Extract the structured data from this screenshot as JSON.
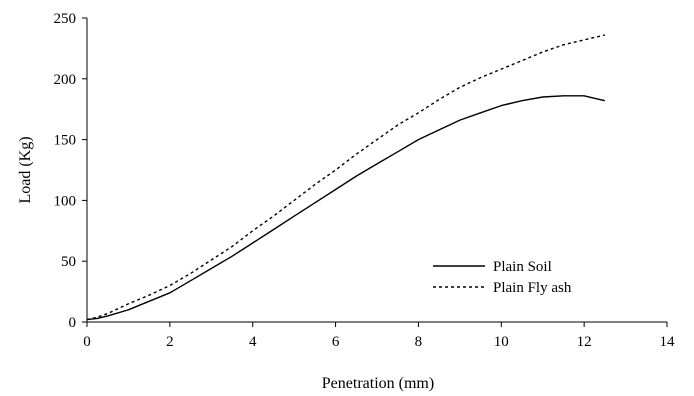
{
  "chart_data": {
    "type": "line",
    "title": "",
    "xlabel": "Penetration (mm)",
    "ylabel": "Load (Kg)",
    "xlim": [
      0,
      14
    ],
    "ylim": [
      0,
      250
    ],
    "x_ticks": [
      0,
      2,
      4,
      6,
      8,
      10,
      12,
      14
    ],
    "y_ticks": [
      0,
      50,
      100,
      150,
      200,
      250
    ],
    "grid": false,
    "legend_position": "right-center",
    "series": [
      {
        "name": "Plain Soil",
        "style": "solid",
        "color": "#000000",
        "x": [
          0,
          0.25,
          0.5,
          1.0,
          1.5,
          2.0,
          2.5,
          3.0,
          3.5,
          4.0,
          4.5,
          5.0,
          5.5,
          6.0,
          6.5,
          7.0,
          7.5,
          8.0,
          8.5,
          9.0,
          9.5,
          10.0,
          10.5,
          11.0,
          11.5,
          12.0,
          12.25,
          12.5
        ],
        "y": [
          2,
          3,
          5,
          10,
          17,
          24,
          34,
          44,
          54,
          65,
          76,
          87,
          98,
          109,
          120,
          130,
          140,
          150,
          158,
          166,
          172,
          178,
          182,
          185,
          186,
          186,
          184,
          182
        ]
      },
      {
        "name": "Plain Fly ash",
        "style": "dotted",
        "color": "#000000",
        "x": [
          0,
          0.25,
          0.5,
          1.0,
          1.5,
          2.0,
          2.5,
          3.0,
          3.5,
          4.0,
          4.5,
          5.0,
          5.5,
          6.0,
          6.5,
          7.0,
          7.5,
          8.0,
          8.5,
          9.0,
          9.5,
          10.0,
          10.5,
          11.0,
          11.5,
          12.0,
          12.5
        ],
        "y": [
          2,
          4,
          7,
          15,
          22,
          30,
          40,
          51,
          62,
          75,
          87,
          100,
          113,
          125,
          138,
          150,
          162,
          172,
          183,
          193,
          201,
          208,
          215,
          222,
          228,
          232,
          236
        ]
      }
    ]
  }
}
